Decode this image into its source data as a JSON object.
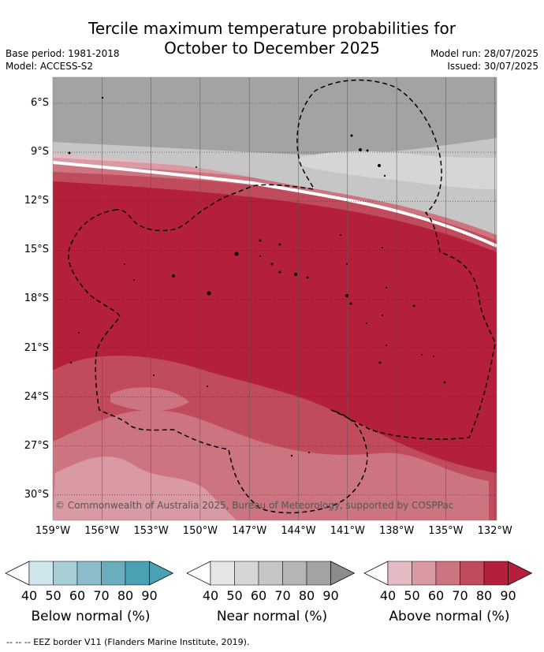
{
  "title_line1": "Tercile maximum temperature probabilities for",
  "title_line2": "October to December 2025",
  "base_period": "Base period: 1981-2018",
  "model": "Model: ACCESS-S2",
  "model_run": "Model run: 28/07/2025",
  "issued": "Issued: 30/07/2025",
  "copyright": "© Commonwealth of Australia 2025, Bureau of Meteorology, supported by COSPPac",
  "footnote": "--  --  -- EEZ border V11 (Flanders Marine Institute, 2019).",
  "lat_labels": [
    "6°S",
    "9°S",
    "12°S",
    "15°S",
    "18°S",
    "21°S",
    "24°S",
    "27°S",
    "30°S"
  ],
  "lon_labels": [
    "159°W",
    "156°W",
    "153°W",
    "150°W",
    "147°W",
    "144°W",
    "141°W",
    "138°W",
    "135°W",
    "132°W"
  ],
  "colors": {
    "below": [
      "#cfe6ec",
      "#a7cdd5",
      "#8bbcc9",
      "#6aaebd",
      "#4aa1b3"
    ],
    "near": [
      "#e6e6e6",
      "#d6d6d6",
      "#c6c6c6",
      "#b5b5b5",
      "#a3a3a3"
    ],
    "above": [
      "#e3bcc3",
      "#d99aa3",
      "#cc7480",
      "#c04b5d",
      "#b41f3c"
    ]
  },
  "legends": [
    {
      "title": "Below normal (%)",
      "ticks": [
        "40",
        "50",
        "60",
        "70",
        "80",
        "90"
      ]
    },
    {
      "title": "Near normal (%)",
      "ticks": [
        "40",
        "50",
        "60",
        "70",
        "80",
        "90"
      ]
    },
    {
      "title": "Above normal (%)",
      "ticks": [
        "40",
        "50",
        "60",
        "70",
        "80",
        "90"
      ]
    }
  ]
}
